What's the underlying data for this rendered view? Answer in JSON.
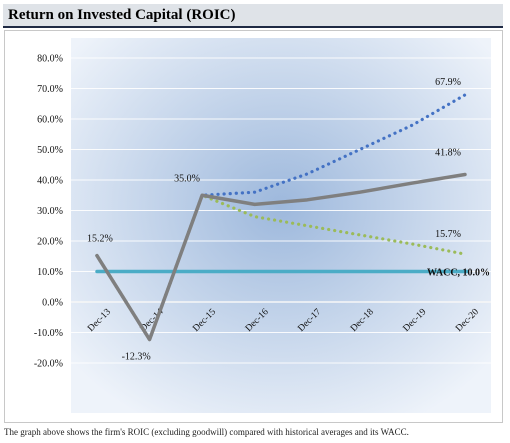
{
  "header": {
    "title": "Return on Invested Capital (ROIC)"
  },
  "caption": "The graph above shows the firm's ROIC (excluding goodwill) compared with historical averages and its WACC.",
  "colors": {
    "plot_bg_center": "#9db8dc",
    "plot_bg_edge": "#eef3fa",
    "historical": "#7f7f7f",
    "high": "#4472c4",
    "low": "#9bbb59",
    "wacc": "#4bacc6",
    "gridline": "#ffffff"
  },
  "chart_data": {
    "type": "line",
    "title": "",
    "xlabel": "",
    "ylabel": "",
    "categories": [
      "Dec-13",
      "Dec-14",
      "Dec-15",
      "Dec-16",
      "Dec-17",
      "Dec-18",
      "Dec-19",
      "Dec-20"
    ],
    "ylim": [
      -20,
      80
    ],
    "yticks": [
      "80.0%",
      "70.0%",
      "60.0%",
      "50.0%",
      "40.0%",
      "30.0%",
      "20.0%",
      "10.0%",
      "0.0%",
      "-10.0%",
      "-20.0%"
    ],
    "grid": true,
    "series": [
      {
        "values": [
          15.2,
          -12.3,
          35.0,
          32.0,
          33.5,
          36.0,
          39.0,
          41.8
        ],
        "style": "solid",
        "color": "#7f7f7f"
      },
      {
        "values": [
          15.2,
          -12.3,
          35.0,
          36.0,
          42.0,
          50.0,
          58.0,
          67.9
        ],
        "style": "dotted",
        "color": "#4472c4"
      },
      {
        "values": [
          15.2,
          -12.3,
          35.0,
          28.0,
          25.0,
          22.0,
          19.0,
          15.7
        ],
        "style": "dotted",
        "color": "#9bbb59"
      },
      {
        "values": [
          10.0,
          10.0,
          10.0,
          10.0,
          10.0,
          10.0,
          10.0,
          10.0
        ],
        "style": "solid",
        "color": "#4bacc6"
      }
    ],
    "data_labels": [
      {
        "text": "15.2%",
        "x": "Dec-13",
        "y": 15.2
      },
      {
        "text": "-12.3%",
        "x": "Dec-14",
        "y": -12.3
      },
      {
        "text": "35.0%",
        "x": "Dec-15",
        "y": 35.0
      },
      {
        "text": "67.9%",
        "x": "Dec-20",
        "y": 67.9
      },
      {
        "text": "41.8%",
        "x": "Dec-20",
        "y": 41.8
      },
      {
        "text": "15.7%",
        "x": "Dec-20",
        "y": 15.7
      },
      {
        "text": "WACC, 10.0%",
        "x": "Dec-20",
        "y": 10.0
      }
    ]
  }
}
